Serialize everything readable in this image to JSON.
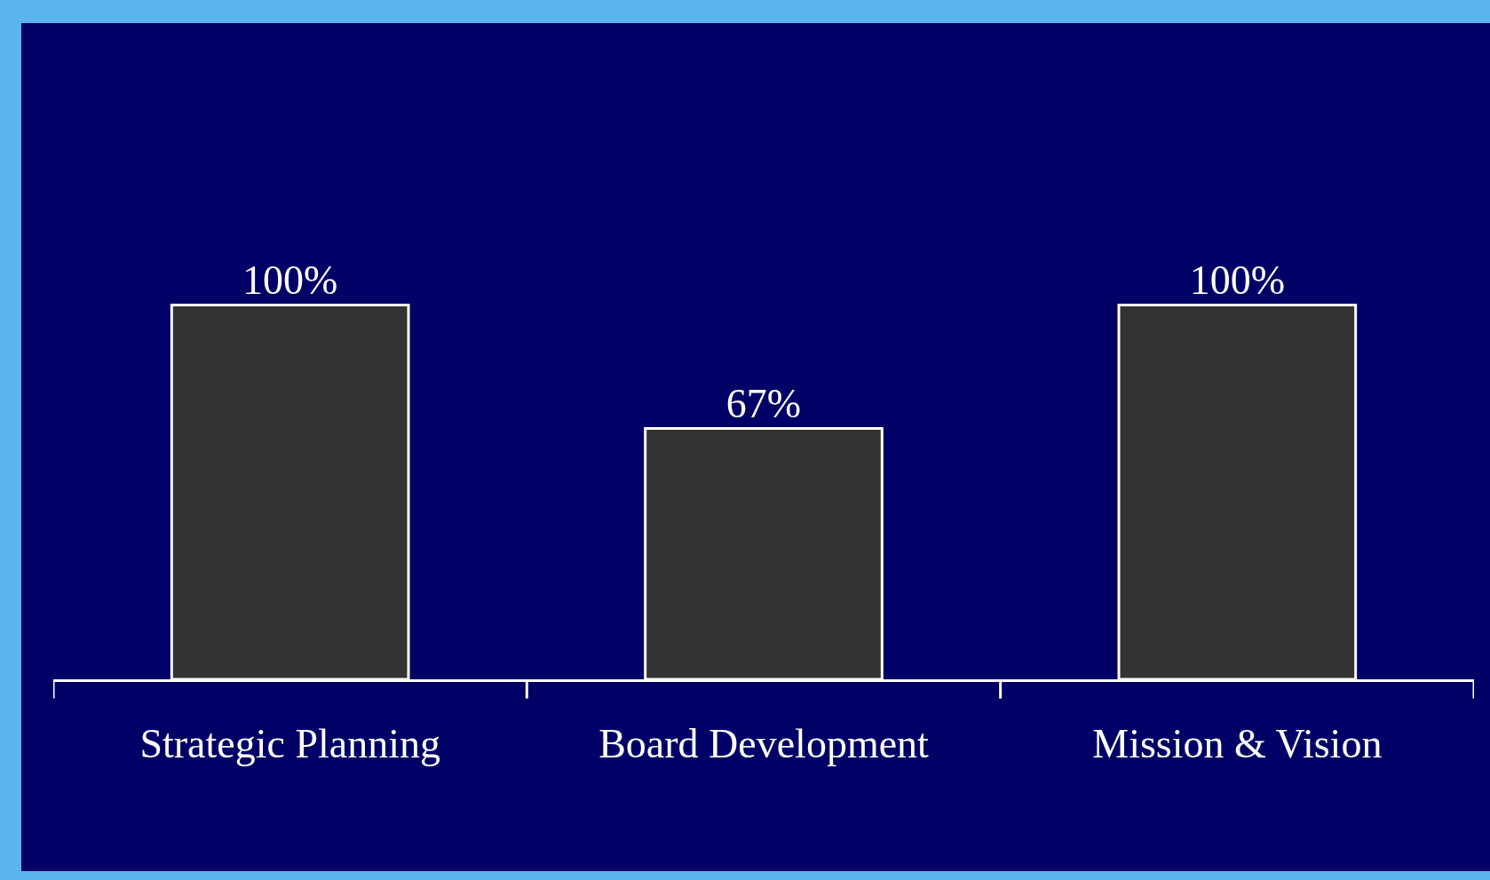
{
  "chart_data": {
    "type": "bar",
    "categories": [
      "Strategic Planning",
      "Board Development",
      "Mission & Vision"
    ],
    "values": [
      100,
      67,
      100
    ],
    "value_labels": [
      "100%",
      "67%",
      "100%"
    ],
    "color": "#333333",
    "legend": false
  }
}
